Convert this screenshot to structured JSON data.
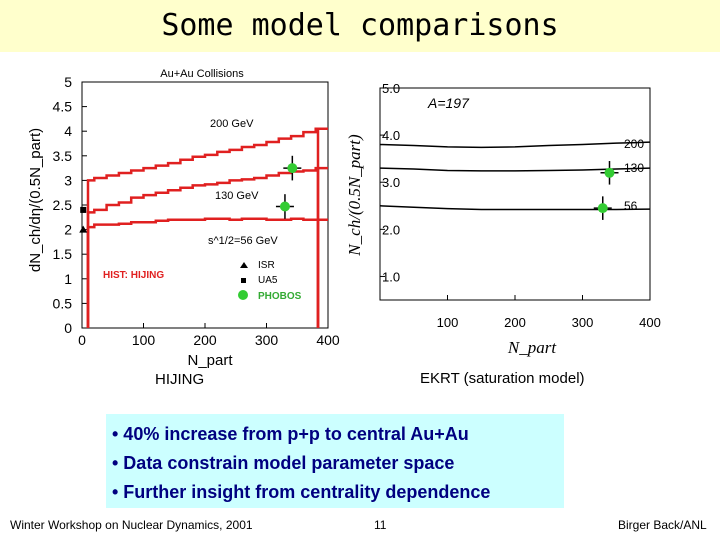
{
  "slide": {
    "title": "Some model comparisons",
    "hijing_caption": "HIJING",
    "ekrt_caption": "EKRT (saturation model)",
    "bullets": [
      "• 40% increase from p+p to central Au+Au",
      "• Data constrain model parameter space",
      "• Further insight from centrality dependence"
    ],
    "footer_left": "Winter Workshop on Nuclear Dynamics, 2001",
    "footer_page": "11",
    "footer_right": "Birger Back/ANL",
    "colors": {
      "title_bg": "#ffffcc",
      "bullet_bg": "#ccffff",
      "bullet_text": "#000080",
      "hijing": "#e02020",
      "phobos": "#33cc33"
    }
  },
  "chart_data": [
    {
      "type": "line",
      "title": "Au+Au Collisions",
      "xlabel": "N_part",
      "ylabel": "dN_ch/dη/(0.5N_part)",
      "xlim": [
        0,
        400
      ],
      "ylim": [
        0,
        5
      ],
      "xticks": [
        0,
        100,
        200,
        300,
        400
      ],
      "yticks": [
        0,
        0.5,
        1,
        1.5,
        2,
        2.5,
        3,
        3.5,
        4,
        4.5,
        5
      ],
      "series": [
        {
          "name": "200 GeV",
          "x": [
            10,
            30,
            50,
            70,
            90,
            110,
            130,
            150,
            170,
            190,
            210,
            230,
            250,
            270,
            290,
            310,
            330,
            350,
            370,
            390
          ],
          "y": [
            3.0,
            3.05,
            3.1,
            3.15,
            3.2,
            3.25,
            3.3,
            3.35,
            3.42,
            3.48,
            3.52,
            3.58,
            3.62,
            3.68,
            3.72,
            3.78,
            3.85,
            3.9,
            3.98,
            4.05
          ]
        },
        {
          "name": "130 GeV",
          "x": [
            10,
            30,
            50,
            70,
            90,
            110,
            130,
            150,
            170,
            190,
            210,
            230,
            250,
            270,
            290,
            310,
            330,
            350,
            370,
            390
          ],
          "y": [
            2.35,
            2.4,
            2.5,
            2.55,
            2.65,
            2.7,
            2.75,
            2.8,
            2.85,
            2.9,
            2.92,
            2.95,
            3.0,
            3.02,
            3.05,
            3.1,
            3.15,
            3.18,
            3.2,
            3.25
          ]
        },
        {
          "name": "s^1/2=56 GeV",
          "x": [
            10,
            30,
            50,
            70,
            90,
            110,
            130,
            150,
            170,
            190,
            210,
            230,
            250,
            270,
            290,
            310,
            330,
            350,
            370,
            390
          ],
          "y": [
            2.05,
            2.1,
            2.1,
            2.12,
            2.15,
            2.15,
            2.18,
            2.2,
            2.2,
            2.2,
            2.22,
            2.22,
            2.2,
            2.22,
            2.22,
            2.2,
            2.2,
            2.22,
            2.2,
            2.2
          ]
        }
      ],
      "legend": {
        "hist_label": "HIST: HIJING",
        "isr": "ISR",
        "ua5": "UA5",
        "phobos": "PHOBOS"
      },
      "points": [
        {
          "name": "UA5",
          "x": 2,
          "y": 2.4
        },
        {
          "name": "ISR",
          "x": 2,
          "y": 2.0
        },
        {
          "name": "PHOBOS",
          "x": 342,
          "y": 3.25,
          "err": 0.25
        },
        {
          "name": "PHOBOS",
          "x": 330,
          "y": 2.47,
          "err": 0.25
        }
      ]
    },
    {
      "type": "line",
      "title": "A=197",
      "xlabel": "N_part",
      "ylabel": "N_ch/(0.5N_part)",
      "xlim": [
        0,
        400
      ],
      "ylim": [
        0.5,
        5.0
      ],
      "xticks": [
        100,
        200,
        300,
        400
      ],
      "yticks": [
        1.0,
        2.0,
        3.0,
        4.0,
        5.0
      ],
      "series": [
        {
          "name": "200",
          "x": [
            0,
            50,
            100,
            150,
            200,
            250,
            300,
            350,
            400
          ],
          "y": [
            3.8,
            3.78,
            3.75,
            3.74,
            3.75,
            3.78,
            3.8,
            3.83,
            3.85
          ]
        },
        {
          "name": "130",
          "x": [
            0,
            50,
            100,
            150,
            200,
            250,
            300,
            350,
            400
          ],
          "y": [
            3.3,
            3.28,
            3.25,
            3.24,
            3.24,
            3.25,
            3.26,
            3.28,
            3.3
          ]
        },
        {
          "name": "56",
          "x": [
            0,
            50,
            100,
            150,
            200,
            250,
            300,
            350,
            400
          ],
          "y": [
            2.5,
            2.47,
            2.44,
            2.42,
            2.42,
            2.42,
            2.42,
            2.42,
            2.43
          ]
        }
      ],
      "points": [
        {
          "name": "PHOBOS",
          "x": 340,
          "y": 3.2,
          "err": 0.25
        },
        {
          "name": "PHOBOS",
          "x": 330,
          "y": 2.45,
          "err": 0.25
        }
      ]
    }
  ]
}
